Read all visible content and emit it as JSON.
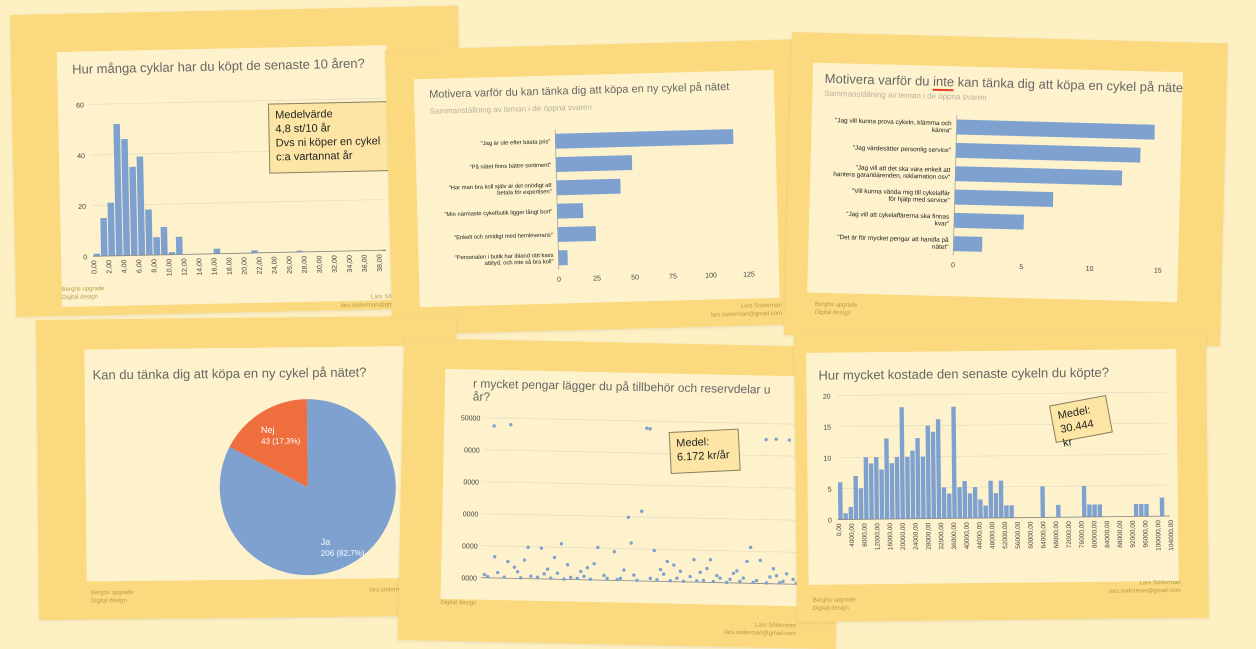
{
  "colors": {
    "bar": "#7ea1d0",
    "pie_yes": "#7ea1d0",
    "pie_no": "#ee6e3d",
    "background": "#fdf0c3",
    "slide": "#fbd97f",
    "card": "#fdf2cc"
  },
  "footer": {
    "left_1": "Berghs upgrade",
    "left_2": "Digital design",
    "right_1": "Lars Söderman",
    "right_2": "lars.soderman@gmail.com"
  },
  "slides": {
    "s1": {
      "title": "Hur många cyklar har du köpt de senaste 10 åren?",
      "note": [
        "Medelvärde",
        "4,8 st/10 år",
        "Dvs ni köper en cykel",
        "c:a vartannat år"
      ]
    },
    "s2": {
      "title": "Motivera varför du kan tänka dig att köpa en ny cykel på nätet",
      "subtitle": "Sammanställning av teman i de öppna svaren"
    },
    "s3": {
      "title_a": "Motivera varför du ",
      "title_b": "inte",
      "title_c": " kan tänka dig att köpa en cykel på nätet",
      "subtitle": "Sammanställning av teman i de öppna svaren"
    },
    "s4": {
      "title": "Kan du tänka dig att köpa en ny cykel på nätet?"
    },
    "s5": {
      "title_1": "r mycket pengar lägger du på tillbehör och reservdelar u",
      "title_2": "år?",
      "note": [
        "Medel:",
        "6.172 kr/år"
      ]
    },
    "s6": {
      "title": "Hur mycket kostade den senaste cykeln du köpte?",
      "note": [
        "Medel:",
        "30.444 kr"
      ]
    }
  },
  "chart_data": [
    {
      "type": "bar",
      "title": "Hur många cyklar har du köpt de senaste 10 åren?",
      "ylim": [
        0,
        60
      ],
      "yticks": [
        0,
        20,
        40,
        60
      ],
      "xticks": [
        "0,00",
        "2,00",
        "4,00",
        "6,00",
        "8,00",
        "10,00",
        "12,00",
        "14,00",
        "16,00",
        "18,00",
        "20,00",
        "22,00",
        "24,00",
        "26,00",
        "28,00",
        "30,00",
        "32,00",
        "34,00",
        "36,00",
        "38,00"
      ],
      "bins": [
        {
          "x": 0,
          "v": 1
        },
        {
          "x": 1,
          "v": 15
        },
        {
          "x": 2,
          "v": 21
        },
        {
          "x": 3,
          "v": 52
        },
        {
          "x": 4,
          "v": 46
        },
        {
          "x": 5,
          "v": 35
        },
        {
          "x": 6,
          "v": 39
        },
        {
          "x": 7,
          "v": 18
        },
        {
          "x": 8,
          "v": 7
        },
        {
          "x": 9,
          "v": 11
        },
        {
          "x": 10,
          "v": 1
        },
        {
          "x": 11,
          "v": 7
        },
        {
          "x": 16,
          "v": 2
        },
        {
          "x": 21,
          "v": 1
        },
        {
          "x": 27,
          "v": 0.5
        }
      ]
    },
    {
      "type": "bar",
      "orientation": "horizontal",
      "title": "Motivera varför du kan tänka dig att köpa en ny cykel på nätet",
      "xlim": [
        0,
        125
      ],
      "xticks": [
        0,
        25,
        50,
        75,
        100,
        125
      ],
      "categories": [
        "\"Jag är ute efter bästa pris\"",
        "\"På nätet finns bättre sortiment\"",
        "\"Har man bra koll själv är det onödigt att betala för expertisen\"",
        "\"Min närmaste cykelbutik ligger långt bort\"",
        "\"Enkelt och smidigt med hemleverans\"",
        "\"Personalen i butik har ibland rätt kass attityd, och inte så bra koll\""
      ],
      "values": [
        117,
        50,
        42,
        17,
        25,
        6
      ]
    },
    {
      "type": "bar",
      "orientation": "horizontal",
      "title": "Motivera varför du inte kan tänka dig att köpa en cykel på nätet",
      "xlim": [
        0,
        15
      ],
      "xticks": [
        0,
        5,
        10,
        15
      ],
      "categories": [
        "\"Jag vill kunna prova cykeln, klämma och känna\"",
        "\"Jag värdesätter personlig service\"",
        "\"Jag vill att det ska vara enkelt att hantera garantiärenden, reklamation osv\"",
        "\"Vill kunna vända mig till cykelaffär för hjälp med service\"",
        "\"Jag vill att cykelaffärerna ska finnas kvar\"",
        "\"Det är för mycket pengar att handla på nätet\""
      ],
      "values": [
        14.5,
        13.5,
        12.2,
        7.2,
        5.1,
        2.1
      ]
    },
    {
      "type": "pie",
      "title": "Kan du tänka dig att köpa en ny cykel på nätet?",
      "slices": [
        {
          "label": "Ja",
          "text": "206 (82,7%)",
          "value": 206
        },
        {
          "label": "Nej",
          "text": "43 (17,3%)",
          "value": 43
        }
      ]
    },
    {
      "type": "scatter",
      "title": "r mycket pengar lägger du på tillbehör och reservdelar u år?",
      "ylim": [
        0,
        50000
      ],
      "yticks": [
        "0000",
        "0000",
        "0000",
        "0000",
        "0000",
        "50000"
      ],
      "ytick_values": [
        0,
        10000,
        20000,
        30000,
        40000,
        50000
      ],
      "points": [
        [
          3,
          47500
        ],
        [
          8,
          48000
        ],
        [
          49,
          47800
        ],
        [
          50,
          47600
        ],
        [
          85,
          45000
        ],
        [
          88,
          45200
        ],
        [
          92,
          45000
        ],
        [
          8,
          5200
        ],
        [
          14,
          9800
        ],
        [
          18,
          9600
        ],
        [
          22,
          6800
        ],
        [
          26,
          4600
        ],
        [
          30,
          2600
        ],
        [
          35,
          10200
        ],
        [
          40,
          9000
        ],
        [
          44,
          19800
        ],
        [
          48,
          21800
        ],
        [
          52,
          9600
        ],
        [
          56,
          6300
        ],
        [
          60,
          3300
        ],
        [
          64,
          7000
        ],
        [
          68,
          4300
        ],
        [
          72,
          1400
        ],
        [
          76,
          3000
        ],
        [
          80,
          6800
        ],
        [
          84,
          7200
        ],
        [
          88,
          4700
        ],
        [
          92,
          3200
        ],
        [
          5,
          1700
        ],
        [
          11,
          2100
        ],
        [
          15,
          800
        ],
        [
          19,
          1600
        ],
        [
          23,
          1900
        ],
        [
          27,
          700
        ],
        [
          31,
          1100
        ],
        [
          37,
          1500
        ],
        [
          42,
          700
        ],
        [
          46,
          1800
        ],
        [
          51,
          900
        ],
        [
          55,
          2300
        ],
        [
          59,
          1100
        ],
        [
          63,
          1700
        ],
        [
          67,
          600
        ],
        [
          71,
          2200
        ],
        [
          75,
          1100
        ],
        [
          79,
          1600
        ],
        [
          83,
          900
        ],
        [
          87,
          2100
        ],
        [
          91,
          800
        ],
        [
          94,
          1500
        ],
        [
          98,
          700
        ],
        [
          2,
          400
        ],
        [
          7,
          300
        ],
        [
          12,
          200
        ],
        [
          17,
          500
        ],
        [
          21,
          300
        ],
        [
          25,
          100
        ],
        [
          29,
          400
        ],
        [
          33,
          200
        ],
        [
          38,
          600
        ],
        [
          41,
          300
        ],
        [
          47,
          200
        ],
        [
          53,
          500
        ],
        [
          57,
          300
        ],
        [
          61,
          200
        ],
        [
          65,
          400
        ],
        [
          70,
          300
        ],
        [
          74,
          100
        ],
        [
          78,
          500
        ],
        [
          82,
          300
        ],
        [
          86,
          200
        ],
        [
          90,
          400
        ],
        [
          95,
          300
        ],
        [
          99,
          100
        ],
        [
          4,
          6600
        ],
        [
          13,
          5800
        ],
        [
          24,
          11100
        ],
        [
          34,
          5100
        ],
        [
          45,
          11800
        ],
        [
          58,
          5200
        ],
        [
          69,
          7100
        ],
        [
          81,
          11200
        ],
        [
          97,
          1400
        ],
        [
          1,
          1000
        ],
        [
          10,
          3500
        ],
        [
          20,
          3100
        ],
        [
          32,
          3800
        ],
        [
          43,
          3300
        ],
        [
          54,
          3700
        ],
        [
          66,
          3100
        ],
        [
          77,
          3800
        ],
        [
          89,
          2500
        ],
        [
          96,
          2700
        ]
      ]
    },
    {
      "type": "bar",
      "title": "Hur mycket kostade den senaste cykeln du köpte?",
      "ylim": [
        0,
        20
      ],
      "yticks": [
        0,
        5,
        10,
        15,
        20
      ],
      "xticks": [
        "0,00",
        "4000,00",
        "8000,00",
        "12000,00",
        "16000,00",
        "20000,00",
        "24000,00",
        "28000,00",
        "32000,00",
        "36000,00",
        "40000,00",
        "44000,00",
        "48000,00",
        "52000,00",
        "56000,00",
        "60000,00",
        "64000,00",
        "68000,00",
        "72000,00",
        "76000,00",
        "80000,00",
        "84000,00",
        "88000,00",
        "92000,00",
        "96000,00",
        "100000,00",
        "104000,00"
      ],
      "values": [
        6,
        1,
        2,
        7,
        5,
        10,
        9,
        10,
        8,
        13,
        9,
        10,
        18,
        10,
        11,
        13,
        10,
        15,
        14,
        16,
        5,
        4,
        18,
        5,
        6,
        4,
        5,
        3,
        2,
        6,
        4,
        6,
        2,
        2,
        0,
        0,
        0,
        0,
        0,
        5,
        0,
        0,
        2,
        0,
        0,
        0,
        0,
        5,
        2,
        2,
        2,
        0,
        0,
        0,
        0,
        0,
        0,
        2,
        2,
        2,
        0,
        0,
        3,
        0
      ]
    }
  ]
}
